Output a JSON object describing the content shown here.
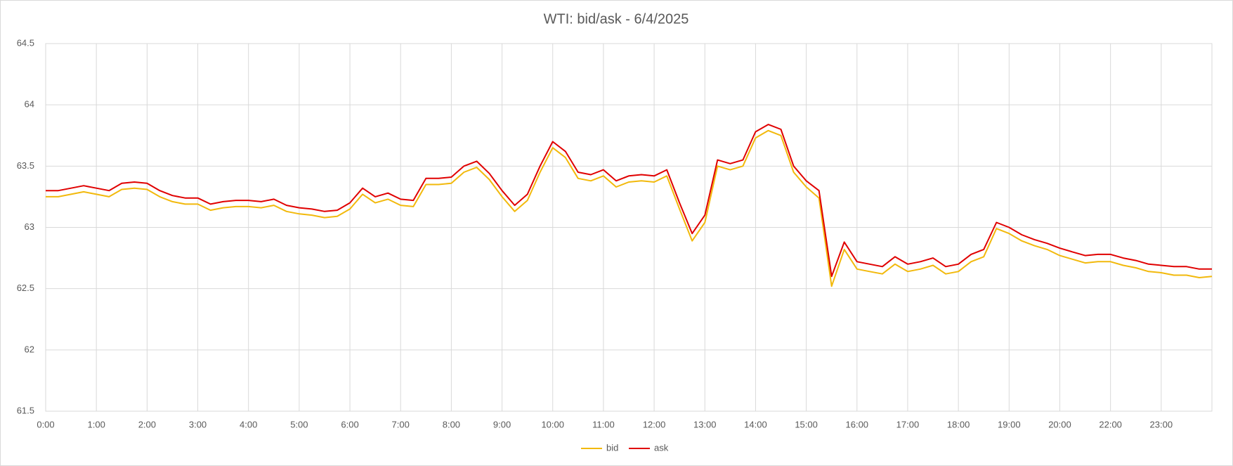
{
  "chart_data": {
    "type": "line",
    "title": "WTI: bid/ask - 6/4/2025",
    "x": [
      0,
      0.25,
      0.5,
      0.75,
      1,
      1.25,
      1.5,
      1.75,
      2,
      2.25,
      2.5,
      2.75,
      3,
      3.25,
      3.5,
      3.75,
      4,
      4.25,
      4.5,
      4.75,
      5,
      5.25,
      5.5,
      5.75,
      6,
      6.25,
      6.5,
      6.75,
      7,
      7.25,
      7.5,
      7.75,
      8,
      8.25,
      8.5,
      8.75,
      9,
      9.25,
      9.5,
      9.75,
      10,
      10.25,
      10.5,
      10.75,
      11,
      11.25,
      11.5,
      11.75,
      12,
      12.25,
      12.5,
      12.75,
      13,
      13.25,
      13.5,
      13.75,
      14,
      14.25,
      14.5,
      14.75,
      15,
      15.25,
      15.5,
      15.75,
      16,
      16.25,
      16.5,
      16.75,
      17,
      17.25,
      17.5,
      17.75,
      18,
      18.25,
      18.5,
      18.75,
      19,
      19.25,
      19.5,
      19.75,
      20,
      20.25,
      20.5,
      20.75,
      21,
      21.25,
      21.5,
      21.75,
      22,
      22.25,
      22.5,
      22.75,
      23
    ],
    "series": [
      {
        "name": "bid",
        "color": "#f2b90c",
        "values": [
          63.25,
          63.25,
          63.27,
          63.29,
          63.27,
          63.25,
          63.31,
          63.32,
          63.31,
          63.25,
          63.21,
          63.19,
          63.19,
          63.14,
          63.16,
          63.17,
          63.17,
          63.16,
          63.18,
          63.13,
          63.11,
          63.1,
          63.08,
          63.09,
          63.15,
          63.27,
          63.2,
          63.23,
          63.18,
          63.17,
          63.35,
          63.35,
          63.36,
          63.45,
          63.49,
          63.39,
          63.25,
          63.13,
          63.22,
          63.45,
          63.65,
          63.57,
          63.4,
          63.38,
          63.42,
          63.33,
          63.37,
          63.38,
          63.37,
          63.42,
          63.15,
          62.89,
          63.04,
          63.5,
          63.47,
          63.5,
          63.73,
          63.79,
          63.75,
          63.45,
          63.33,
          63.24,
          62.52,
          62.82,
          62.66,
          62.64,
          62.62,
          62.7,
          62.64,
          62.66,
          62.69,
          62.62,
          62.64,
          62.72,
          62.76,
          62.99,
          62.95,
          62.89,
          62.85,
          62.82,
          62.77,
          62.74,
          62.71,
          62.72,
          62.72,
          62.69,
          62.67,
          62.64,
          62.63,
          62.61,
          62.61,
          62.59,
          62.6
        ]
      },
      {
        "name": "ask",
        "color": "#e00000",
        "values": [
          63.3,
          63.3,
          63.32,
          63.34,
          63.32,
          63.3,
          63.36,
          63.37,
          63.36,
          63.3,
          63.26,
          63.24,
          63.24,
          63.19,
          63.21,
          63.22,
          63.22,
          63.21,
          63.23,
          63.18,
          63.16,
          63.15,
          63.13,
          63.14,
          63.2,
          63.32,
          63.25,
          63.28,
          63.23,
          63.22,
          63.4,
          63.4,
          63.41,
          63.5,
          63.54,
          63.44,
          63.3,
          63.18,
          63.27,
          63.5,
          63.7,
          63.62,
          63.45,
          63.43,
          63.47,
          63.38,
          63.42,
          63.43,
          63.42,
          63.47,
          63.2,
          62.95,
          63.1,
          63.55,
          63.52,
          63.55,
          63.78,
          63.84,
          63.8,
          63.5,
          63.38,
          63.3,
          62.6,
          62.88,
          62.72,
          62.7,
          62.68,
          62.76,
          62.7,
          62.72,
          62.75,
          62.68,
          62.7,
          62.78,
          62.82,
          63.04,
          63.0,
          62.94,
          62.9,
          62.87,
          62.83,
          62.8,
          62.77,
          62.78,
          62.78,
          62.75,
          62.73,
          62.7,
          62.69,
          62.68,
          62.68,
          62.66,
          62.66
        ]
      }
    ],
    "xlim": [
      0,
      23
    ],
    "xticks": [
      {
        "value": 0,
        "label": "0:00"
      },
      {
        "value": 1,
        "label": "1:00"
      },
      {
        "value": 2,
        "label": "2:00"
      },
      {
        "value": 3,
        "label": "3:00"
      },
      {
        "value": 4,
        "label": "4:00"
      },
      {
        "value": 5,
        "label": "5:00"
      },
      {
        "value": 6,
        "label": "6:00"
      },
      {
        "value": 7,
        "label": "7:00"
      },
      {
        "value": 8,
        "label": "8:00"
      },
      {
        "value": 9,
        "label": "9:00"
      },
      {
        "value": 10,
        "label": "10:00"
      },
      {
        "value": 11,
        "label": "11:00"
      },
      {
        "value": 12,
        "label": "12:00"
      },
      {
        "value": 13,
        "label": "13:00"
      },
      {
        "value": 14,
        "label": "14:00"
      },
      {
        "value": 15,
        "label": "15:00"
      },
      {
        "value": 16,
        "label": "16:00"
      },
      {
        "value": 17,
        "label": "17:00"
      },
      {
        "value": 18,
        "label": "18:00"
      },
      {
        "value": 19,
        "label": "19:00"
      },
      {
        "value": 20,
        "label": "20:00"
      },
      {
        "value": 21,
        "label": "22:00"
      },
      {
        "value": 22,
        "label": "23:00"
      }
    ],
    "ylim": [
      61.5,
      64.5
    ],
    "yticks": [
      61.5,
      62,
      62.5,
      63,
      63.5,
      64,
      64.5
    ],
    "grid": true,
    "legend": "bottom"
  }
}
